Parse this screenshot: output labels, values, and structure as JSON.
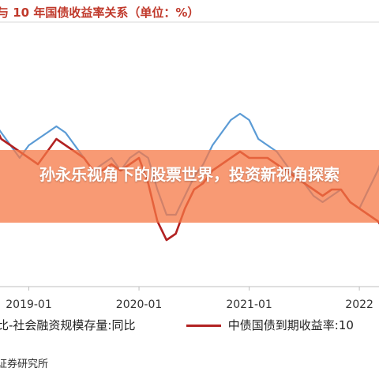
{
  "header": {
    "title_fragment": "与 10 年国债收益率关系（单位：%）"
  },
  "overlay": {
    "headline": "孙永乐视角下的股票世界，投资新视角探索"
  },
  "legend": {
    "item1": "比-社会融资规模存量:同比",
    "item2": "中债国债到期收益率:10"
  },
  "footer": {
    "source_fragment": "证券研究所"
  },
  "colors": {
    "series1": "#5b9bd5",
    "series2": "#b22222",
    "overlay": "#f5784a",
    "title": "#c0392b"
  },
  "chart_data": {
    "type": "line",
    "x_tick_labels": [
      "2019-01",
      "2020-01",
      "2021-01",
      "2022"
    ],
    "x": [
      "2018-09",
      "2018-10",
      "2018-11",
      "2018-12",
      "2019-01",
      "2019-02",
      "2019-03",
      "2019-04",
      "2019-05",
      "2019-06",
      "2019-07",
      "2019-08",
      "2019-09",
      "2019-10",
      "2019-11",
      "2019-12",
      "2020-01",
      "2020-02",
      "2020-03",
      "2020-04",
      "2020-05",
      "2020-06",
      "2020-07",
      "2020-08",
      "2020-09",
      "2020-10",
      "2020-11",
      "2020-12",
      "2021-01",
      "2021-02",
      "2021-03",
      "2021-04",
      "2021-05",
      "2021-06",
      "2021-07",
      "2021-08",
      "2021-09",
      "2021-10",
      "2021-11",
      "2021-12",
      "2022-01",
      "2022-02",
      "2022-03",
      "2022-04"
    ],
    "series": [
      {
        "name": "比-社会融资规模存量:同比",
        "values": [
          3.5,
          3.4,
          3.3,
          3.2,
          3.3,
          3.35,
          3.4,
          3.45,
          3.4,
          3.3,
          3.2,
          3.1,
          3.15,
          3.2,
          3.1,
          3.2,
          3.25,
          3.2,
          2.95,
          2.75,
          2.75,
          2.9,
          3.05,
          3.15,
          3.3,
          3.4,
          3.5,
          3.55,
          3.5,
          3.35,
          3.3,
          3.25,
          3.15,
          3.05,
          3.0,
          2.9,
          2.85,
          2.9,
          2.95,
          2.85,
          2.8,
          2.95,
          3.1,
          3.3
        ]
      },
      {
        "name": "中债国债到期收益率:10",
        "values": [
          3.5,
          3.35,
          3.3,
          3.25,
          3.2,
          3.15,
          3.25,
          3.35,
          3.3,
          3.25,
          3.2,
          3.1,
          3.1,
          3.15,
          3.1,
          3.15,
          3.2,
          3.0,
          2.7,
          2.55,
          2.6,
          2.8,
          2.95,
          3.0,
          3.1,
          3.15,
          3.2,
          3.25,
          3.2,
          3.2,
          3.2,
          3.15,
          3.1,
          3.05,
          3.0,
          2.95,
          2.9,
          2.95,
          2.95,
          2.85,
          2.8,
          2.75,
          2.7,
          2.6
        ]
      }
    ],
    "ylim": [
      2.2,
      4.2
    ],
    "grid": false,
    "legend_position": "bottom"
  }
}
